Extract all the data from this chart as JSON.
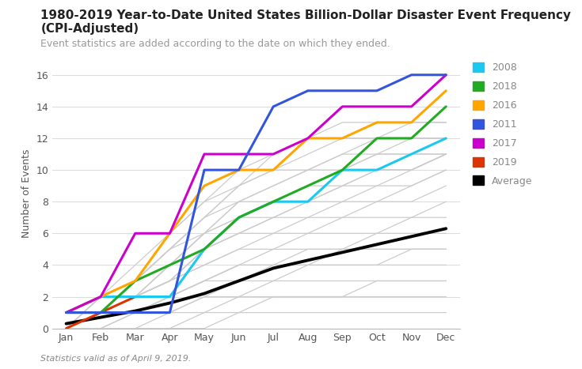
{
  "title": "1980-2019 Year-to-Date United States Billion-Dollar Disaster Event Frequency (CPI-Adjusted)",
  "subtitle": "Event statistics are added according to the date on which they ended.",
  "footer": "Statistics valid as of April 9, 2019.",
  "ylabel": "Number of Events",
  "months": [
    "Jan",
    "Feb",
    "Mar",
    "Apr",
    "May",
    "Jun",
    "Jul",
    "Aug",
    "Sep",
    "Oct",
    "Nov",
    "Dec"
  ],
  "ylim": [
    0,
    17
  ],
  "yticks": [
    0,
    2,
    4,
    6,
    8,
    10,
    12,
    14,
    16
  ],
  "series_2008": {
    "color": "#1AC8F0",
    "label": "2008",
    "data": [
      1,
      2,
      2,
      2,
      5,
      7,
      8,
      8,
      10,
      10,
      11,
      12
    ]
  },
  "series_2018": {
    "color": "#22AA22",
    "label": "2018",
    "data": [
      1,
      1,
      3,
      4,
      5,
      7,
      8,
      9,
      10,
      12,
      12,
      14
    ]
  },
  "series_2016": {
    "color": "#FFA500",
    "label": "2016",
    "data": [
      1,
      2,
      3,
      6,
      9,
      10,
      10,
      12,
      12,
      13,
      13,
      15
    ]
  },
  "series_2011": {
    "color": "#3355DD",
    "label": "2011",
    "data": [
      1,
      1,
      1,
      1,
      10,
      10,
      14,
      15,
      15,
      15,
      16,
      16
    ]
  },
  "series_2017": {
    "color": "#CC00CC",
    "label": "2017",
    "data": [
      1,
      2,
      6,
      6,
      11,
      11,
      11,
      12,
      14,
      14,
      14,
      16
    ]
  },
  "series_2019": {
    "color": "#DD3300",
    "label": "2019",
    "data": [
      0,
      1,
      2,
      null,
      null,
      null,
      null,
      null,
      null,
      null,
      null,
      null
    ]
  },
  "series_avg": {
    "color": "#000000",
    "label": "Average",
    "data": [
      0.3,
      0.7,
      1.1,
      1.6,
      2.2,
      3.0,
      3.8,
      4.3,
      4.8,
      5.3,
      5.8,
      6.3
    ]
  },
  "background_lines": [
    [
      0,
      0,
      0,
      0,
      0,
      1,
      1,
      1,
      1,
      1,
      1,
      1
    ],
    [
      0,
      0,
      0,
      0,
      1,
      1,
      2,
      2,
      2,
      2,
      2,
      2
    ],
    [
      0,
      0,
      0,
      1,
      1,
      2,
      2,
      2,
      2,
      3,
      3,
      3
    ],
    [
      0,
      0,
      1,
      1,
      2,
      2,
      3,
      3,
      3,
      3,
      3,
      3
    ],
    [
      0,
      0,
      1,
      1,
      2,
      3,
      3,
      4,
      4,
      4,
      4,
      4
    ],
    [
      0,
      1,
      1,
      2,
      3,
      3,
      4,
      4,
      4,
      4,
      5,
      5
    ],
    [
      0,
      1,
      1,
      2,
      3,
      4,
      4,
      4,
      5,
      5,
      5,
      5
    ],
    [
      0,
      1,
      1,
      2,
      3,
      4,
      4,
      5,
      5,
      5,
      5,
      5
    ],
    [
      0,
      1,
      1,
      2,
      3,
      4,
      5,
      5,
      5,
      6,
      6,
      6
    ],
    [
      0,
      1,
      2,
      3,
      4,
      5,
      5,
      6,
      6,
      6,
      7,
      7
    ],
    [
      0,
      1,
      2,
      3,
      4,
      5,
      6,
      6,
      7,
      7,
      7,
      8
    ],
    [
      0,
      1,
      2,
      3,
      5,
      6,
      6,
      7,
      7,
      8,
      8,
      9
    ],
    [
      0,
      1,
      2,
      3,
      5,
      6,
      7,
      7,
      8,
      8,
      9,
      10
    ],
    [
      0,
      1,
      2,
      3,
      5,
      6,
      7,
      8,
      8,
      9,
      9,
      10
    ],
    [
      0,
      1,
      2,
      4,
      5,
      7,
      7,
      8,
      9,
      9,
      10,
      11
    ],
    [
      0,
      1,
      2,
      4,
      5,
      7,
      8,
      8,
      9,
      10,
      10,
      11
    ],
    [
      0,
      1,
      2,
      4,
      6,
      7,
      8,
      9,
      9,
      10,
      10,
      11
    ],
    [
      0,
      1,
      3,
      4,
      6,
      7,
      8,
      9,
      10,
      10,
      10,
      11
    ],
    [
      0,
      1,
      3,
      4,
      6,
      8,
      8,
      9,
      10,
      11,
      11,
      11
    ],
    [
      0,
      1,
      3,
      5,
      6,
      8,
      9,
      10,
      10,
      11,
      11,
      11
    ],
    [
      0,
      1,
      3,
      5,
      7,
      8,
      9,
      10,
      11,
      11,
      12,
      12
    ],
    [
      0,
      2,
      3,
      5,
      7,
      9,
      10,
      10,
      11,
      12,
      12,
      12
    ],
    [
      0,
      2,
      3,
      5,
      7,
      9,
      10,
      11,
      12,
      12,
      12,
      12
    ],
    [
      0,
      2,
      3,
      6,
      8,
      9,
      11,
      12,
      12,
      12,
      13,
      13
    ],
    [
      0,
      2,
      4,
      6,
      8,
      10,
      11,
      12,
      13,
      13,
      13,
      13
    ]
  ],
  "bg_line_color": "#CCCCCC",
  "title_fontsize": 11,
  "subtitle_fontsize": 9,
  "footer_fontsize": 8,
  "axis_fontsize": 9,
  "tick_fontsize": 9,
  "legend_fontsize": 9
}
